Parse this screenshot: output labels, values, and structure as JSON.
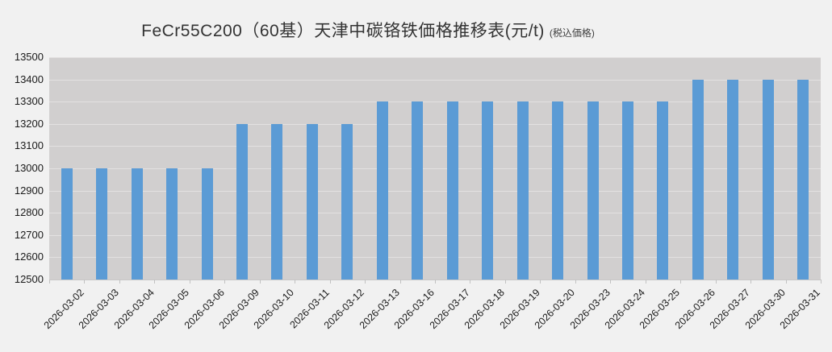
{
  "page": {
    "background_color": "#f1f1f1"
  },
  "title": {
    "main": "FeCr55C200（60基）天津中碳铬铁価格推移表(元/t)",
    "suffix": "(税込価格)"
  },
  "chart_data": {
    "type": "bar",
    "title": "FeCr55C200（60基）天津中碳铬铁価格推移表(元/t)",
    "subtitle": "(税込価格)",
    "categories": [
      "2026-03-02",
      "2026-03-03",
      "2026-03-04",
      "2026-03-05",
      "2026-03-06",
      "2026-03-09",
      "2026-03-10",
      "2026-03-11",
      "2026-03-12",
      "2026-03-13",
      "2026-03-16",
      "2026-03-17",
      "2026-03-18",
      "2026-03-19",
      "2026-03-20",
      "2026-03-23",
      "2026-03-24",
      "2026-03-25",
      "2026-03-26",
      "2026-03-27",
      "2026-03-30",
      "2026-03-31"
    ],
    "values": [
      13000,
      13000,
      13000,
      13000,
      13000,
      13200,
      13200,
      13200,
      13200,
      13300,
      13300,
      13300,
      13300,
      13300,
      13300,
      13300,
      13300,
      13300,
      13400,
      13400,
      13400,
      13400
    ],
    "xlabel": "",
    "ylabel": "",
    "ylim": [
      12500,
      13500
    ],
    "ytick_step": 100,
    "grid": true,
    "legend": "none",
    "bar_color": "#5b9bd5",
    "plot_background": "#d1cfcf",
    "grid_color": "#e3e1e1"
  }
}
